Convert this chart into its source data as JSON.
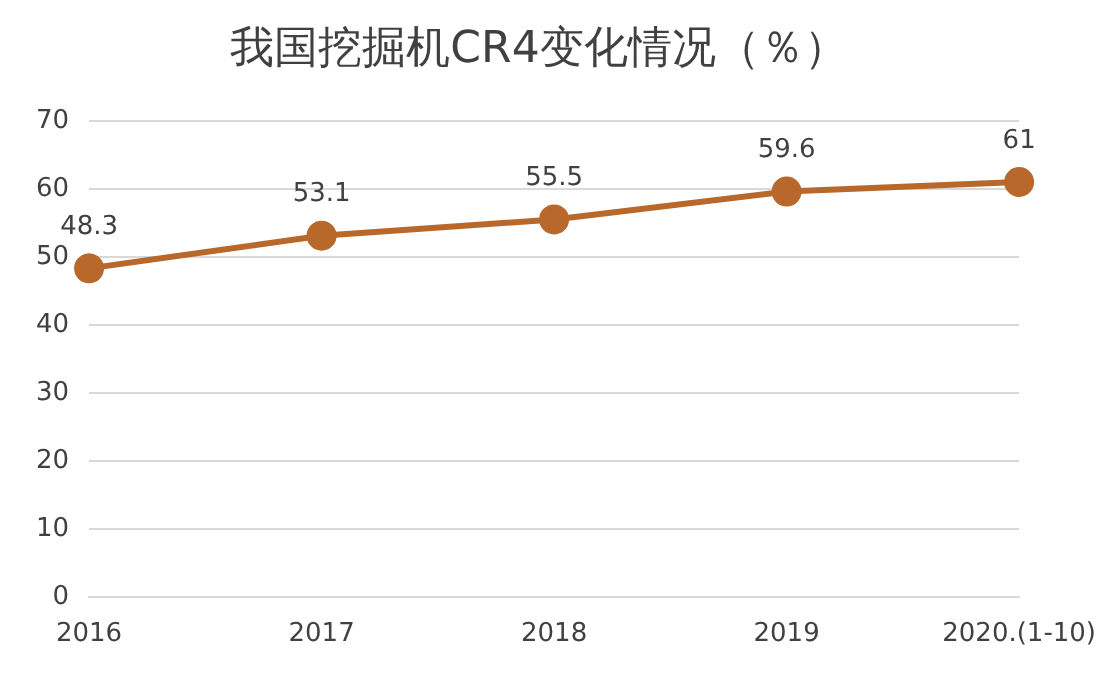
{
  "chart_data": {
    "type": "line",
    "title": "我国挖掘机CR4变化情况（％）",
    "categories": [
      "2016",
      "2017",
      "2018",
      "2019",
      "2020.(1-10)"
    ],
    "series": [
      {
        "color": "#b8682a",
        "values": [
          48.3,
          53.1,
          55.5,
          59.6,
          61
        ]
      }
    ],
    "ylim": [
      0,
      70
    ],
    "yticks": [
      0,
      10,
      20,
      30,
      40,
      50,
      60,
      70
    ],
    "grid": "y",
    "legend": false,
    "marker": "circle",
    "line_style": "solid",
    "data_labels": true
  }
}
